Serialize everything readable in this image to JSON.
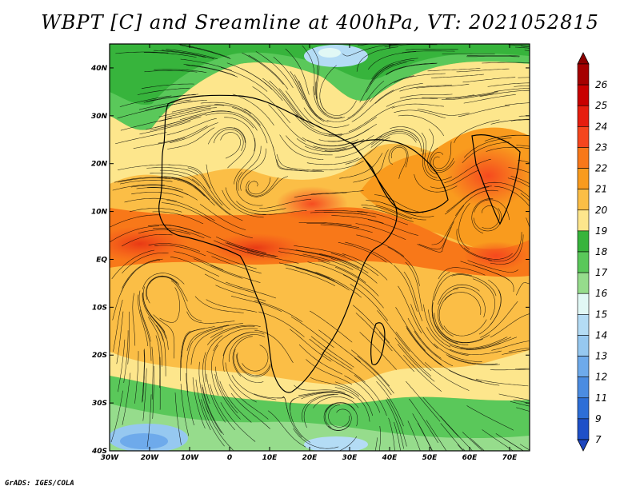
{
  "title": "WBPT [C] and Sreamline at 400hPa, VT: 2021052815",
  "footer": "GrADS: IGES/COLA",
  "map": {
    "lon_range": [
      -30,
      75
    ],
    "lat_range": [
      -40,
      45
    ],
    "lon_ticks": [
      {
        "value": -30,
        "label": "30W"
      },
      {
        "value": -20,
        "label": "20W"
      },
      {
        "value": -10,
        "label": "10W"
      },
      {
        "value": 0,
        "label": "0"
      },
      {
        "value": 10,
        "label": "10E"
      },
      {
        "value": 20,
        "label": "20E"
      },
      {
        "value": 30,
        "label": "30E"
      },
      {
        "value": 40,
        "label": "40E"
      },
      {
        "value": 50,
        "label": "50E"
      },
      {
        "value": 60,
        "label": "60E"
      },
      {
        "value": 70,
        "label": "70E"
      }
    ],
    "lat_ticks": [
      {
        "value": 40,
        "label": "40N"
      },
      {
        "value": 30,
        "label": "30N"
      },
      {
        "value": 20,
        "label": "20N"
      },
      {
        "value": 10,
        "label": "10N"
      },
      {
        "value": 0,
        "label": "EQ"
      },
      {
        "value": -10,
        "label": "10S"
      },
      {
        "value": -20,
        "label": "20S"
      },
      {
        "value": -30,
        "label": "30S"
      },
      {
        "value": -40,
        "label": "40S"
      }
    ],
    "field": "Wet-bulb potential temperature",
    "overlay": "streamlines"
  },
  "colorbar": {
    "levels": [
      {
        "label": "26",
        "color": "#a50000"
      },
      {
        "label": "25",
        "color": "#c80000"
      },
      {
        "label": "24",
        "color": "#e61e0f"
      },
      {
        "label": "23",
        "color": "#f5461e"
      },
      {
        "label": "22",
        "color": "#f87819"
      },
      {
        "label": "21",
        "color": "#f99b1e"
      },
      {
        "label": "20",
        "color": "#fbbe46"
      },
      {
        "label": "19",
        "color": "#fde68c"
      },
      {
        "label": "18",
        "color": "#37b43c"
      },
      {
        "label": "17",
        "color": "#5ac85a"
      },
      {
        "label": "16",
        "color": "#96dc8c"
      },
      {
        "label": "15",
        "color": "#e1f8f5"
      },
      {
        "label": "14",
        "color": "#b4dcf5"
      },
      {
        "label": "13",
        "color": "#96c8f0"
      },
      {
        "label": "12",
        "color": "#6eaaeb"
      },
      {
        "label": "11",
        "color": "#4b8ce1"
      },
      {
        "label": "9",
        "color": "#2d6ed7"
      },
      {
        "label": "7",
        "color": "#1e50c8"
      }
    ],
    "top_color": "#8c0000",
    "bottom_color": "#1e46be"
  }
}
